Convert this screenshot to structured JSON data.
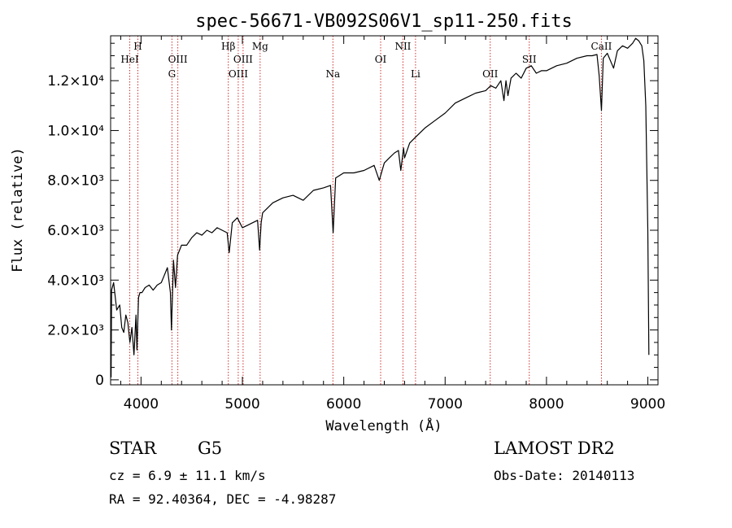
{
  "chart_data": {
    "type": "line",
    "title": "spec-56671-VB092S06V1_sp11-250.fits",
    "xlabel": "Wavelength (Å)",
    "ylabel": "Flux (relative)",
    "xlim": [
      3700,
      9100
    ],
    "ylim": [
      -200,
      13800
    ],
    "xticks": [
      {
        "value": 4000,
        "label": "4000"
      },
      {
        "value": 5000,
        "label": "5000"
      },
      {
        "value": 6000,
        "label": "6000"
      },
      {
        "value": 7000,
        "label": "7000"
      },
      {
        "value": 8000,
        "label": "8000"
      },
      {
        "value": 9000,
        "label": "9000"
      }
    ],
    "yticks": [
      {
        "value": 0,
        "label": "0"
      },
      {
        "value": 2000,
        "label": "2.0×10³"
      },
      {
        "value": 4000,
        "label": "4.0×10³"
      },
      {
        "value": 6000,
        "label": "6.0×10³"
      },
      {
        "value": 8000,
        "label": "8.0×10³"
      },
      {
        "value": 10000,
        "label": "1.0×10⁴"
      },
      {
        "value": 12000,
        "label": "1.2×10⁴"
      }
    ],
    "spectral_lines": [
      {
        "name": "HeI",
        "wavelength": 3889,
        "row": 2
      },
      {
        "name": "H",
        "wavelength": 3969,
        "row": 1
      },
      {
        "name": "G",
        "wavelength": 4305,
        "row": 3
      },
      {
        "name": "OIII",
        "wavelength": 4363,
        "row": 2
      },
      {
        "name": "Hβ",
        "wavelength": 4861,
        "row": 1
      },
      {
        "name": "OIII",
        "wavelength": 4959,
        "row": 3
      },
      {
        "name": "OIII",
        "wavelength": 5007,
        "row": 2
      },
      {
        "name": "Mg",
        "wavelength": 5175,
        "row": 1
      },
      {
        "name": "Na",
        "wavelength": 5893,
        "row": 3
      },
      {
        "name": "OI",
        "wavelength": 6364,
        "row": 2
      },
      {
        "name": "NII",
        "wavelength": 6584,
        "row": 1
      },
      {
        "name": "Li",
        "wavelength": 6708,
        "row": 3
      },
      {
        "name": "OII",
        "wavelength": 7445,
        "row": 3
      },
      {
        "name": "SII",
        "wavelength": 7830,
        "row": 2
      },
      {
        "name": "CaII",
        "wavelength": 8542,
        "row": 1
      }
    ],
    "series": [
      {
        "name": "spectrum",
        "x": [
          3705,
          3710,
          3730,
          3760,
          3790,
          3810,
          3830,
          3850,
          3870,
          3890,
          3910,
          3930,
          3950,
          3960,
          3975,
          3990,
          4010,
          4040,
          4080,
          4120,
          4160,
          4200,
          4230,
          4260,
          4290,
          4300,
          4320,
          4340,
          4360,
          4400,
          4450,
          4500,
          4550,
          4600,
          4650,
          4700,
          4750,
          4800,
          4850,
          4870,
          4900,
          4950,
          5000,
          5050,
          5100,
          5150,
          5170,
          5185,
          5200,
          5250,
          5300,
          5400,
          5500,
          5600,
          5700,
          5800,
          5870,
          5895,
          5920,
          6000,
          6100,
          6200,
          6300,
          6350,
          6400,
          6450,
          6500,
          6540,
          6563,
          6590,
          6600,
          6650,
          6700,
          6800,
          6900,
          7000,
          7100,
          7200,
          7300,
          7400,
          7450,
          7500,
          7550,
          7580,
          7600,
          7620,
          7650,
          7700,
          7750,
          7800,
          7850,
          7900,
          7950,
          8000,
          8100,
          8200,
          8300,
          8400,
          8450,
          8498,
          8520,
          8542,
          8560,
          8600,
          8662,
          8700,
          8750,
          8800,
          8850,
          8880,
          8910,
          8940,
          8960,
          8980,
          9000,
          9010
        ],
        "y": [
          100,
          3600,
          3900,
          2800,
          3000,
          2100,
          1900,
          2600,
          2300,
          1500,
          2100,
          1000,
          2600,
          1200,
          3300,
          3500,
          3500,
          3700,
          3800,
          3600,
          3800,
          3900,
          4200,
          4500,
          3500,
          2000,
          4800,
          3700,
          5000,
          5400,
          5400,
          5700,
          5900,
          5800,
          6000,
          5900,
          6100,
          6000,
          5900,
          5100,
          6300,
          6500,
          6100,
          6200,
          6300,
          6400,
          5200,
          6300,
          6700,
          6900,
          7100,
          7300,
          7400,
          7200,
          7600,
          7700,
          7800,
          5900,
          8100,
          8300,
          8300,
          8400,
          8600,
          8000,
          8700,
          8900,
          9100,
          9200,
          8400,
          9300,
          8900,
          9500,
          9700,
          10100,
          10400,
          10700,
          11100,
          11300,
          11500,
          11600,
          11800,
          11700,
          12000,
          11200,
          12000,
          11400,
          12100,
          12300,
          12100,
          12500,
          12600,
          12300,
          12400,
          12400,
          12600,
          12700,
          12900,
          13000,
          13000,
          13050,
          12200,
          10800,
          12900,
          13100,
          12500,
          13200,
          13400,
          13300,
          13500,
          13700,
          13600,
          13400,
          12800,
          11000,
          6000,
          1000
        ]
      }
    ]
  },
  "info": {
    "object_type": "STAR",
    "subclass": "G5",
    "survey": "LAMOST DR2",
    "cz": "cz = 6.9 ± 11.1 km/s",
    "obs_date": "Obs-Date: 20140113",
    "coords": "RA =  92.40364, DEC =  -4.98287"
  }
}
